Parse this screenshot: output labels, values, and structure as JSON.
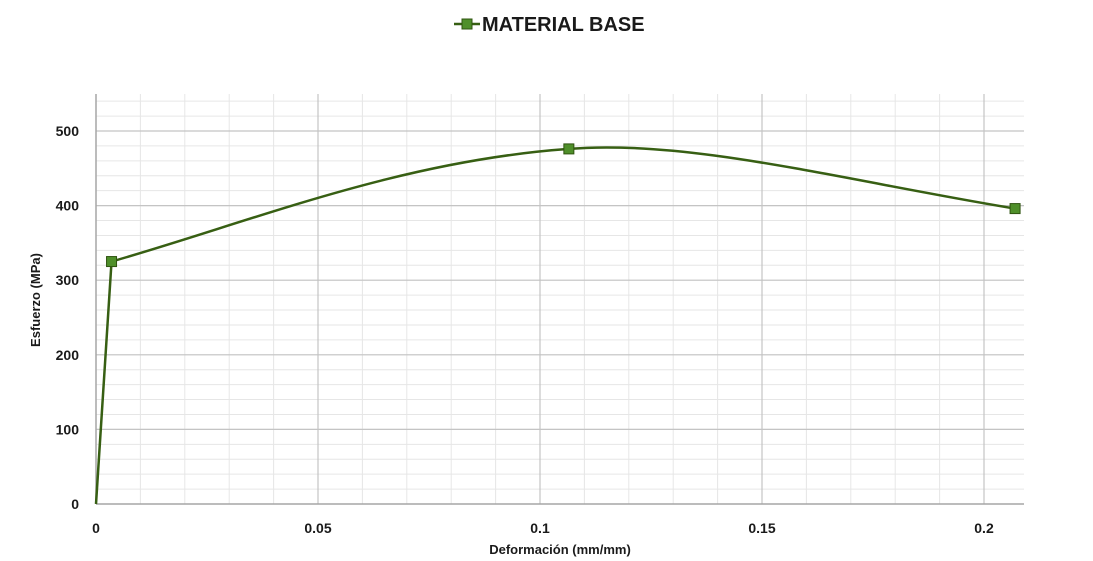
{
  "chart_data": {
    "type": "scatter",
    "title": "",
    "xlabel": "Deformación (mm/mm)",
    "ylabel": "Esfuerzo (MPa)",
    "xlim": [
      0,
      0.21
    ],
    "ylim": [
      0,
      550
    ],
    "x_ticks": [
      0,
      0.05,
      0.1,
      0.15,
      0.2
    ],
    "x_tick_labels": [
      "0",
      "0.05",
      "0.1",
      "0.15",
      "0.2"
    ],
    "y_ticks": [
      0,
      100,
      200,
      300,
      400,
      500
    ],
    "y_tick_labels": [
      "0",
      "100",
      "200",
      "300",
      "400",
      "500"
    ],
    "grid": true,
    "legend_position": "top-center",
    "series": [
      {
        "name": "MATERIAL BASE",
        "color": "#375f13",
        "marker_color": "#4f8f2a",
        "marker": "square",
        "smooth": true,
        "points": [
          {
            "x": 0,
            "y": 0
          },
          {
            "x": 0.0035,
            "y": 325
          },
          {
            "x": 0.1065,
            "y": 476
          },
          {
            "x": 0.207,
            "y": 396
          }
        ]
      }
    ]
  }
}
